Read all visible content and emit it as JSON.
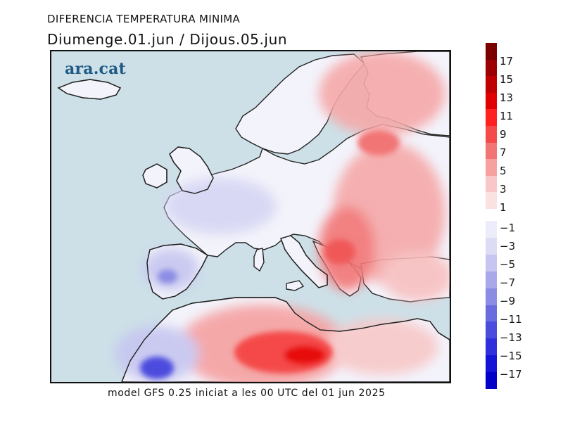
{
  "header": {
    "title": "DIFERENCIA TEMPERATURA MINIMA",
    "dates": "Diumenge.01.jun / Dijous.05.jun"
  },
  "map": {
    "brand": "ara.cat",
    "sea_color": "#cde0e8"
  },
  "footer": {
    "caption": "model GFS 0.25 iniciat a les 00 UTC del 01 jun 2025"
  },
  "colorbar": {
    "positive_labels": [
      "17",
      "15",
      "13",
      "11",
      "9",
      "7",
      "5",
      "3",
      "1"
    ],
    "negative_labels": [
      "−1",
      "−3",
      "−5",
      "−7",
      "−9",
      "−11",
      "−13",
      "−15",
      "−17"
    ],
    "positive_colors": [
      "#7a0000",
      "#9c0000",
      "#c00000",
      "#e00000",
      "#ff2020",
      "#f54a4a",
      "#f27575",
      "#f6a0a0",
      "#f8c8c8",
      "#fbe2e2"
    ],
    "negative_colors": [
      "#ececfa",
      "#dcdcf5",
      "#c6c6f0",
      "#a9a9ea",
      "#8c8ce4",
      "#6b6be0",
      "#4b4bde",
      "#2f2fdc",
      "#1414d6",
      "#0000c8"
    ]
  }
}
